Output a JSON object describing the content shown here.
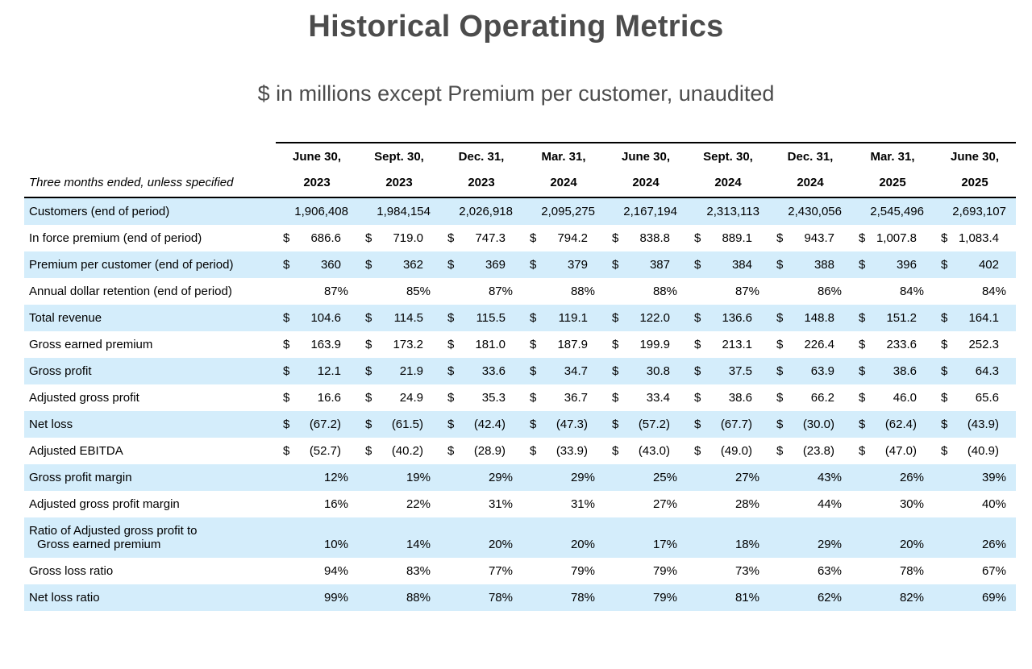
{
  "header": {
    "title": "Historical Operating Metrics",
    "subtitle": "$ in millions except Premium per customer, unaudited"
  },
  "table": {
    "row_label_header": "Three months ended, unless specified",
    "currency_symbol": "$",
    "shade_color": "#d4edfb",
    "columns": [
      {
        "date": "June 30,",
        "year": "2023"
      },
      {
        "date": "Sept. 30,",
        "year": "2023"
      },
      {
        "date": "Dec. 31,",
        "year": "2023"
      },
      {
        "date": "Mar. 31,",
        "year": "2024"
      },
      {
        "date": "June 30,",
        "year": "2024"
      },
      {
        "date": "Sept. 30,",
        "year": "2024"
      },
      {
        "date": "Dec. 31,",
        "year": "2024"
      },
      {
        "date": "Mar. 31,",
        "year": "2025"
      },
      {
        "date": "June 30,",
        "year": "2025"
      }
    ],
    "rows": [
      {
        "label": "Customers (end of period)",
        "type": "plain",
        "values": [
          "1,906,408",
          "1,984,154",
          "2,026,918",
          "2,095,275",
          "2,167,194",
          "2,313,113",
          "2,430,056",
          "2,545,496",
          "2,693,107"
        ]
      },
      {
        "label": "In force premium (end of period)",
        "type": "money",
        "values": [
          "686.6",
          "719.0",
          "747.3",
          "794.2",
          "838.8",
          "889.1",
          "943.7",
          "1,007.8",
          "1,083.4"
        ]
      },
      {
        "label": "Premium per customer (end of period)",
        "type": "money",
        "values": [
          "360",
          "362",
          "369",
          "379",
          "387",
          "384",
          "388",
          "396",
          "402"
        ]
      },
      {
        "label": "Annual dollar retention (end of period)",
        "type": "plain",
        "values": [
          "87%",
          "85%",
          "87%",
          "88%",
          "88%",
          "87%",
          "86%",
          "84%",
          "84%"
        ]
      },
      {
        "label": "Total revenue",
        "type": "money",
        "values": [
          "104.6",
          "114.5",
          "115.5",
          "119.1",
          "122.0",
          "136.6",
          "148.8",
          "151.2",
          "164.1"
        ]
      },
      {
        "label": "Gross earned premium",
        "type": "money",
        "values": [
          "163.9",
          "173.2",
          "181.0",
          "187.9",
          "199.9",
          "213.1",
          "226.4",
          "233.6",
          "252.3"
        ]
      },
      {
        "label": "Gross profit",
        "type": "money",
        "values": [
          "12.1",
          "21.9",
          "33.6",
          "34.7",
          "30.8",
          "37.5",
          "63.9",
          "38.6",
          "64.3"
        ]
      },
      {
        "label": "Adjusted gross profit",
        "type": "money",
        "values": [
          "16.6",
          "24.9",
          "35.3",
          "36.7",
          "33.4",
          "38.6",
          "66.2",
          "46.0",
          "65.6"
        ]
      },
      {
        "label": "Net loss",
        "type": "money",
        "values": [
          "(67.2)",
          "(61.5)",
          "(42.4)",
          "(47.3)",
          "(57.2)",
          "(67.7)",
          "(30.0)",
          "(62.4)",
          "(43.9)"
        ]
      },
      {
        "label": "Adjusted EBITDA",
        "type": "money",
        "values": [
          "(52.7)",
          "(40.2)",
          "(28.9)",
          "(33.9)",
          "(43.0)",
          "(49.0)",
          "(23.8)",
          "(47.0)",
          "(40.9)"
        ]
      },
      {
        "label": "Gross profit margin",
        "type": "plain",
        "values": [
          "12%",
          "19%",
          "29%",
          "29%",
          "25%",
          "27%",
          "43%",
          "26%",
          "39%"
        ]
      },
      {
        "label": "Adjusted gross profit margin",
        "type": "plain",
        "values": [
          "16%",
          "22%",
          "31%",
          "31%",
          "27%",
          "28%",
          "44%",
          "30%",
          "40%"
        ]
      },
      {
        "label": "Ratio of Adjusted gross profit to",
        "label2": "Gross earned premium",
        "type": "plain",
        "values": [
          "10%",
          "14%",
          "20%",
          "20%",
          "17%",
          "18%",
          "29%",
          "20%",
          "26%"
        ]
      },
      {
        "label": "Gross loss ratio",
        "type": "plain",
        "values": [
          "94%",
          "83%",
          "77%",
          "79%",
          "79%",
          "73%",
          "63%",
          "78%",
          "67%"
        ]
      },
      {
        "label": "Net loss ratio",
        "type": "plain",
        "values": [
          "99%",
          "88%",
          "78%",
          "78%",
          "79%",
          "81%",
          "62%",
          "82%",
          "69%"
        ]
      }
    ]
  }
}
